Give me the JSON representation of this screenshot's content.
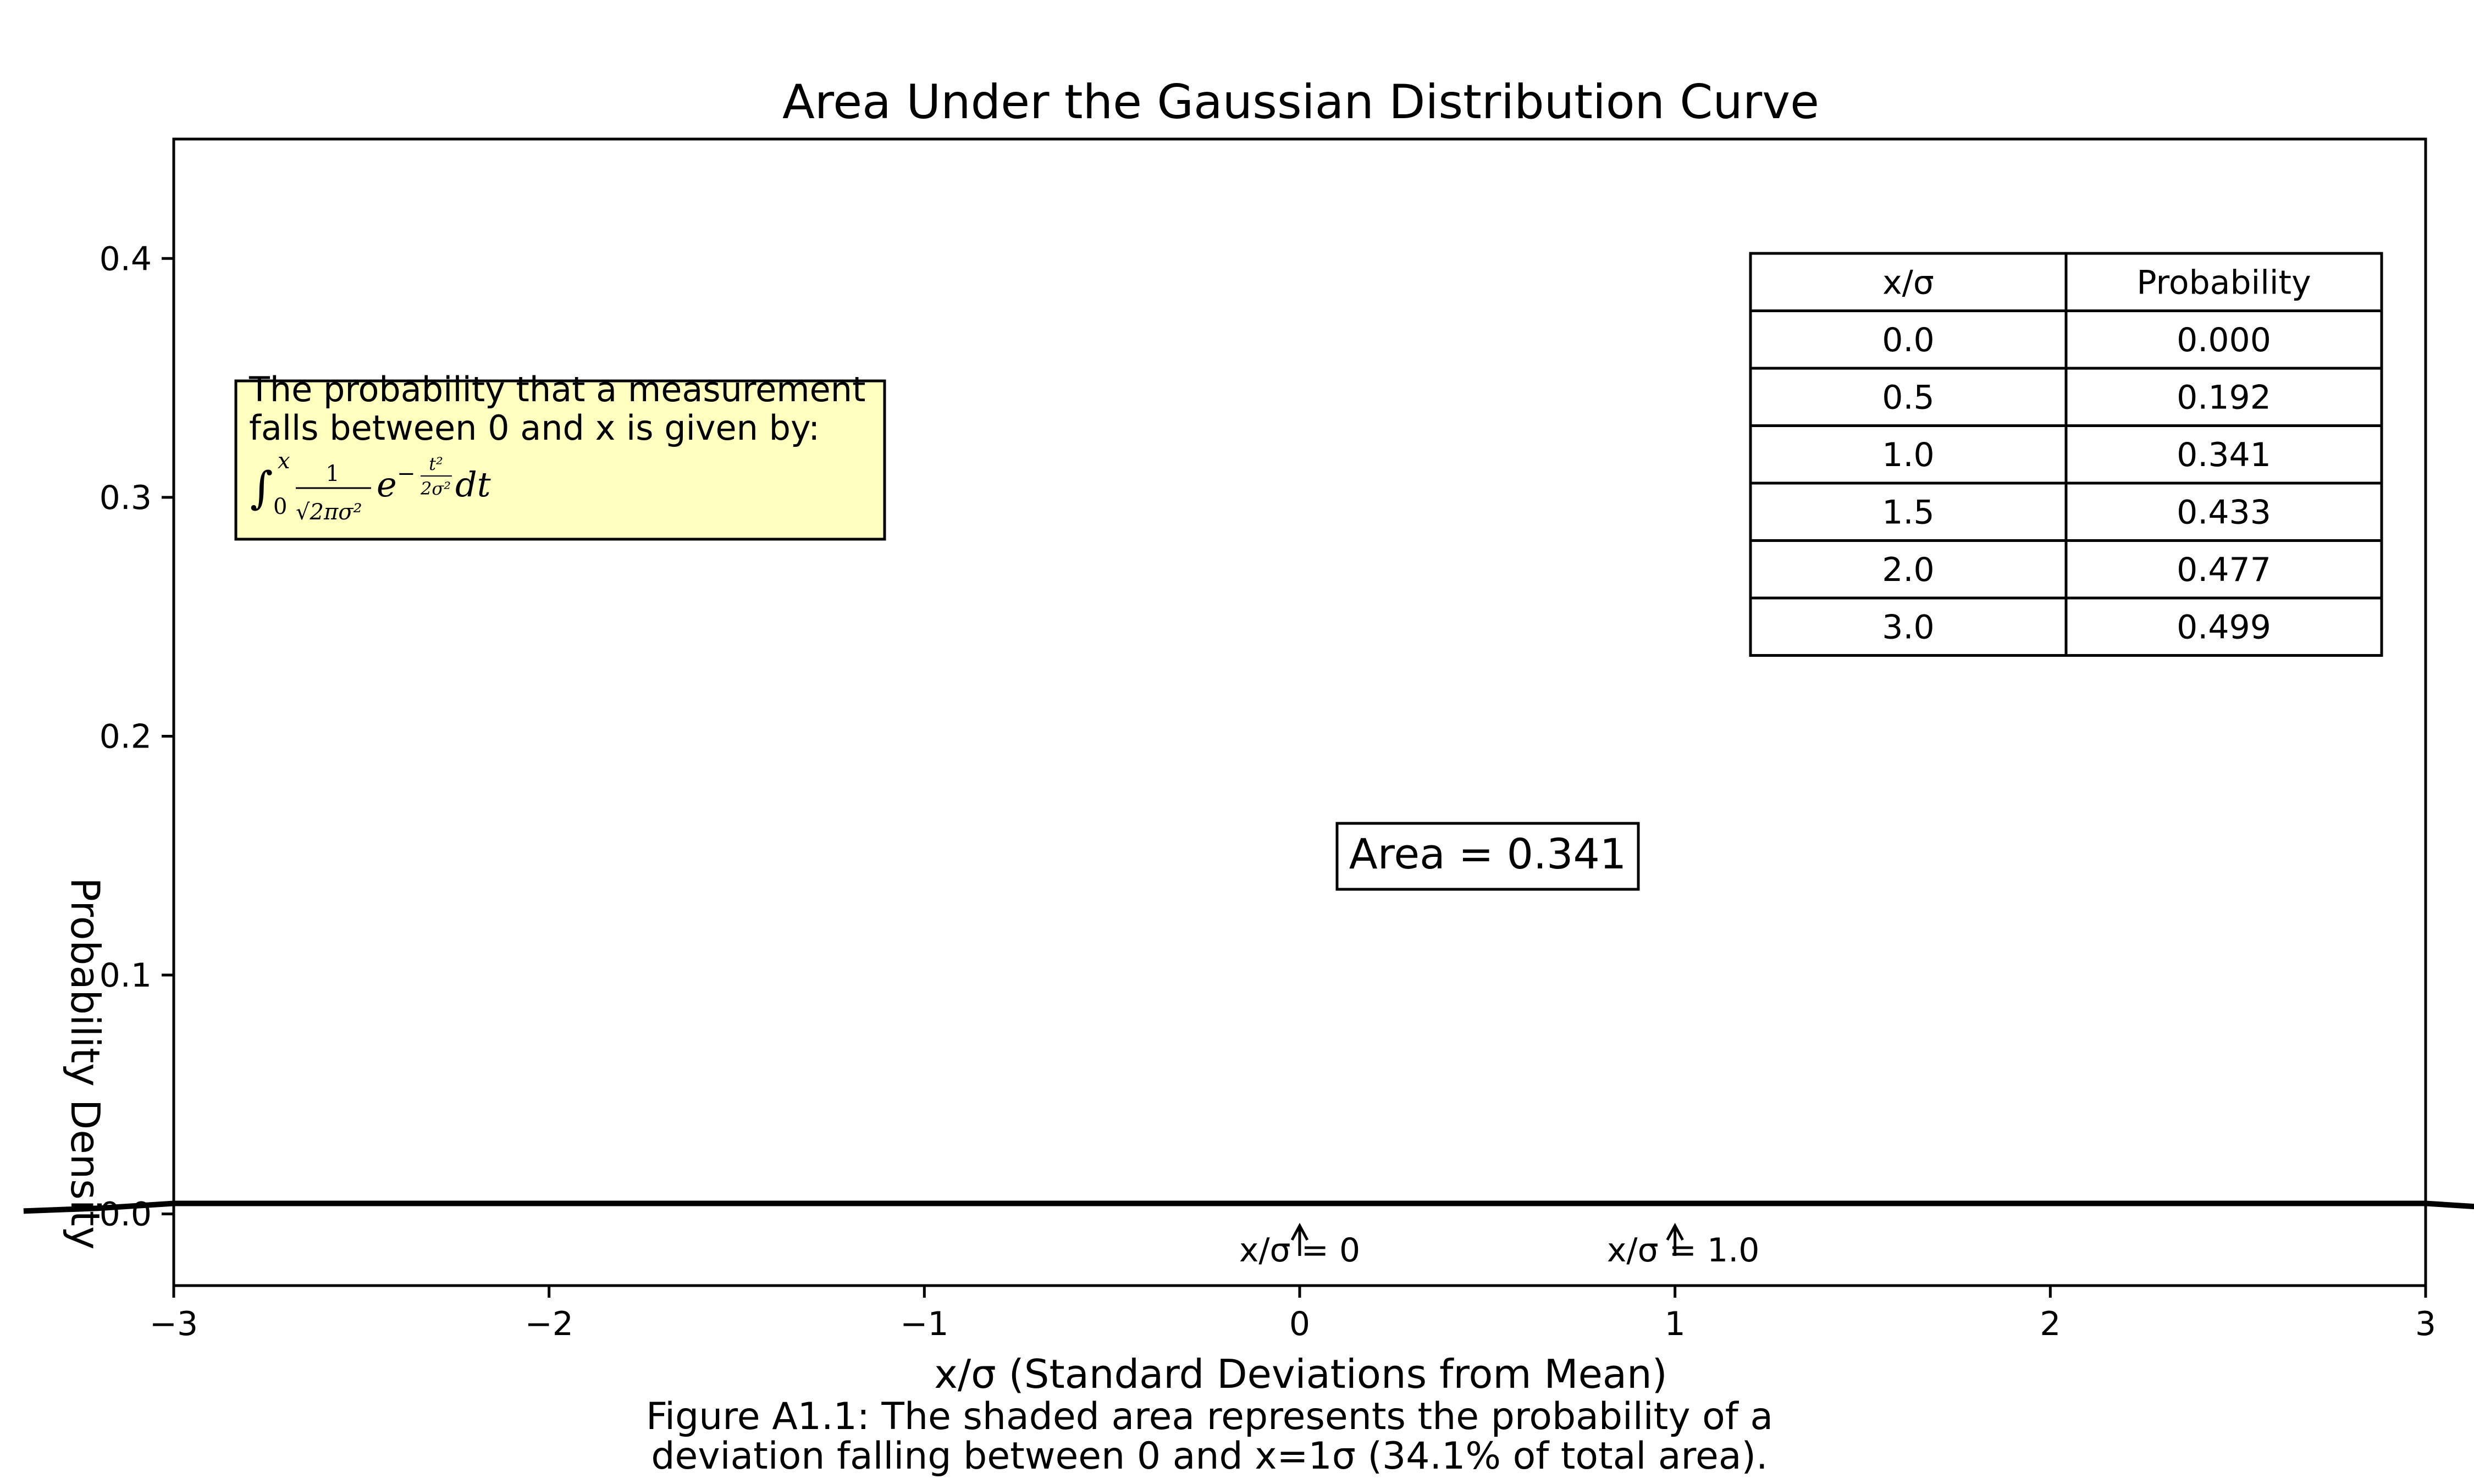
{
  "chart_data": {
    "type": "line",
    "title": "Area Under the Gaussian Distribution Curve",
    "xlabel": "x/σ (Standard Deviations from Mean)",
    "ylabel": "Probability Density",
    "xlim": [
      -3,
      3
    ],
    "ylim": [
      -0.03,
      0.45
    ],
    "x_ticks": [
      -3,
      -2,
      -1,
      0,
      1,
      2,
      3
    ],
    "x_tick_labels": [
      "−3",
      "−2",
      "−1",
      "0",
      "1",
      "2",
      "3"
    ],
    "y_ticks": [
      0.0,
      0.1,
      0.2,
      0.3,
      0.4
    ],
    "y_tick_labels": [
      "0.0",
      "0.1",
      "0.2",
      "0.3",
      "0.4"
    ],
    "grid": false,
    "series": [
      {
        "x": [
          -3.4,
          -3.2,
          -3.0,
          3.0,
          3.2,
          3.4
        ],
        "y": [
          0.0012,
          0.0024,
          0.0044,
          0.0044,
          0.0024,
          0.0012
        ]
      }
    ],
    "annotations": {
      "area_label": "Area = 0.341",
      "marker_zero": "x/σ = 0",
      "marker_one": "x/σ = 1.0",
      "marker_zero_x": 0,
      "marker_one_x": 1.0,
      "note_line1": "The probability that a measurement",
      "note_line2": "falls between 0 and x is given by:",
      "note_bg": "#ffffc0"
    },
    "table": {
      "headers": [
        "x/σ",
        "Probability"
      ],
      "rows": [
        [
          "0.0",
          "0.000"
        ],
        [
          "0.5",
          "0.192"
        ],
        [
          "1.0",
          "0.341"
        ],
        [
          "1.5",
          "0.433"
        ],
        [
          "2.0",
          "0.477"
        ],
        [
          "3.0",
          "0.499"
        ]
      ]
    }
  },
  "caption": {
    "line1": "Figure A1.1: The shaded area represents the probability of a",
    "line2": "deviation falling between 0 and x=1σ (34.1% of total area)."
  }
}
